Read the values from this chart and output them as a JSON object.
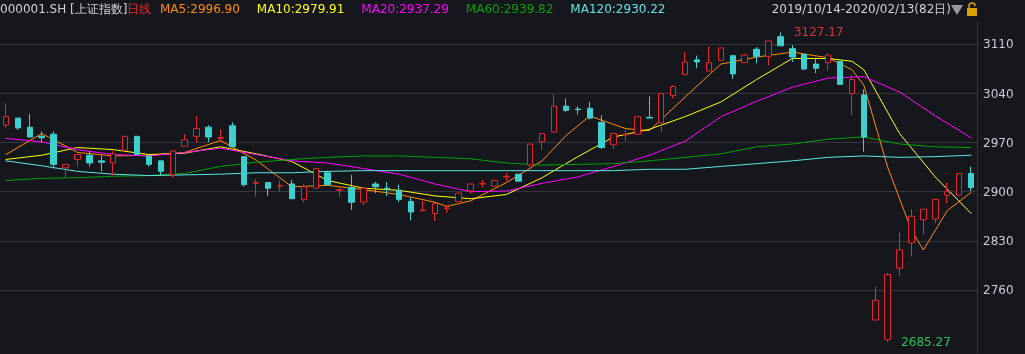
{
  "chart_data": {
    "type": "candlestick",
    "title": "000001.SH [上证指数]",
    "subtitle": "日线",
    "categories": [
      null,
      null,
      null,
      null,
      null,
      null,
      null,
      null,
      null,
      null,
      null,
      null,
      null,
      null,
      null,
      null,
      null,
      null,
      null,
      null,
      null,
      null,
      null,
      null,
      null,
      null,
      null,
      null,
      null,
      null,
      null,
      null,
      null,
      null,
      null,
      null,
      null,
      null,
      null,
      null,
      null,
      null,
      null,
      null,
      null,
      null,
      null,
      null,
      null,
      null,
      null,
      null,
      null,
      null,
      null,
      null,
      null,
      null,
      null,
      null,
      null,
      null,
      null,
      null,
      null,
      null,
      null,
      null,
      null,
      null,
      null,
      null,
      null,
      null,
      null,
      null,
      null,
      null,
      null,
      null,
      null,
      null
    ],
    "ohlc": [
      [
        2995,
        3026,
        2991,
        3007
      ],
      [
        3005,
        3005,
        2988,
        2991
      ],
      [
        2992,
        3011,
        2978,
        2978
      ],
      [
        2979,
        2986,
        2970,
        2977
      ],
      [
        2982,
        2986,
        2933,
        2939
      ],
      [
        2934,
        2939,
        2919,
        2939
      ],
      [
        2946,
        2953,
        2936,
        2953
      ],
      [
        2952,
        2958,
        2936,
        2941
      ],
      [
        2944,
        2952,
        2929,
        2942
      ],
      [
        2941,
        2958,
        2923,
        2954
      ],
      [
        2959,
        2979,
        2959,
        2979
      ],
      [
        2979,
        2979,
        2953,
        2953
      ],
      [
        2951,
        2951,
        2936,
        2939
      ],
      [
        2944,
        2944,
        2924,
        2929
      ],
      [
        2924,
        2958,
        2920,
        2958
      ],
      [
        2965,
        2982,
        2965,
        2974
      ],
      [
        2979,
        3008,
        2970,
        2990
      ],
      [
        2992,
        2995,
        2971,
        2978
      ],
      [
        2976,
        2989,
        2971,
        2977
      ],
      [
        2994,
        2999,
        2964,
        2964
      ],
      [
        2950,
        2950,
        2907,
        2910
      ],
      [
        2912,
        2918,
        2893,
        2913
      ],
      [
        2913,
        2913,
        2894,
        2905
      ],
      [
        2908,
        2916,
        2900,
        2909
      ],
      [
        2911,
        2917,
        2890,
        2890
      ],
      [
        2889,
        2911,
        2885,
        2907
      ],
      [
        2905,
        2933,
        2905,
        2933
      ],
      [
        2927,
        2930,
        2910,
        2910
      ],
      [
        2902,
        2908,
        2893,
        2903
      ],
      [
        2906,
        2924,
        2874,
        2885
      ],
      [
        2885,
        2905,
        2881,
        2905
      ],
      [
        2911,
        2914,
        2898,
        2907
      ],
      [
        2905,
        2914,
        2894,
        2904
      ],
      [
        2902,
        2910,
        2885,
        2889
      ],
      [
        2886,
        2892,
        2859,
        2871
      ],
      [
        2873,
        2887,
        2872,
        2874
      ],
      [
        2869,
        2883,
        2858,
        2883
      ],
      [
        2876,
        2881,
        2870,
        2877
      ],
      [
        2886,
        2898,
        2886,
        2898
      ],
      [
        2901,
        2911,
        2897,
        2911
      ],
      [
        2911,
        2917,
        2906,
        2912
      ],
      [
        2908,
        2917,
        2907,
        2916
      ],
      [
        2921,
        2927,
        2915,
        2922
      ],
      [
        2925,
        2925,
        2915,
        2915
      ],
      [
        2938,
        2968,
        2935,
        2968
      ],
      [
        2971,
        2983,
        2960,
        2983
      ],
      [
        2985,
        3039,
        2984,
        3022
      ],
      [
        3022,
        3033,
        3014,
        3016
      ],
      [
        3018,
        3022,
        3010,
        3017
      ],
      [
        3019,
        3028,
        3003,
        3005
      ],
      [
        2999,
        3009,
        2961,
        2963
      ],
      [
        2967,
        2983,
        2961,
        2983
      ],
      [
        2981,
        2989,
        2972,
        2982
      ],
      [
        2982,
        3007,
        2982,
        3007
      ],
      [
        3006,
        3036,
        3005,
        3005
      ],
      [
        2998,
        3040,
        2985,
        3040
      ],
      [
        3037,
        3052,
        3033,
        3050
      ],
      [
        3067,
        3099,
        3067,
        3085
      ],
      [
        3088,
        3094,
        3076,
        3085
      ],
      [
        3072,
        3107,
        3072,
        3084
      ],
      [
        3087,
        3105,
        3087,
        3105
      ],
      [
        3094,
        3094,
        3061,
        3068
      ],
      [
        3084,
        3097,
        3084,
        3095
      ],
      [
        3103,
        3106,
        3083,
        3093
      ],
      [
        3093,
        3115,
        3080,
        3115
      ],
      [
        3121,
        3127.17,
        3108,
        3108
      ],
      [
        3104,
        3109,
        3085,
        3092
      ],
      [
        3096,
        3096,
        3073,
        3075
      ],
      [
        3082,
        3091,
        3069,
        3076
      ],
      [
        3084,
        3097,
        3073,
        3095
      ],
      [
        3086,
        3086,
        3053,
        3053
      ],
      [
        3040,
        3067,
        3009,
        3060
      ],
      [
        3038,
        3046,
        2957,
        2978
      ],
      [
        2717,
        2765,
        2717,
        2745
      ],
      [
        2689,
        2784,
        2685.27,
        2782
      ],
      [
        2791,
        2842,
        2780,
        2817
      ],
      [
        2827,
        2875,
        2808,
        2865
      ],
      [
        2860,
        2875,
        2839,
        2875
      ],
      [
        2861,
        2890,
        2855,
        2889
      ],
      [
        2895,
        2913,
        2883,
        2900
      ],
      [
        2895,
        2926,
        2895,
        2926
      ],
      [
        2926,
        2936,
        2901,
        2906
      ]
    ],
    "colors": [
      "#e3262b",
      "#3ecfcf",
      "#3ecfcf",
      "#3ecfcf",
      "#3ecfcf",
      "#e3262b",
      "#e3262b",
      "#3ecfcf",
      "#3ecfcf",
      "#e3262b",
      "#e3262b",
      "#3ecfcf",
      "#3ecfcf",
      "#3ecfcf",
      "#e3262b",
      "#e3262b",
      "#e3262b",
      "#3ecfcf",
      "#e3262b",
      "#3ecfcf",
      "#3ecfcf",
      "#e3262b",
      "#3ecfcf",
      "#e3262b",
      "#3ecfcf",
      "#e3262b",
      "#e3262b",
      "#3ecfcf",
      "#e3262b",
      "#3ecfcf",
      "#e3262b",
      "#3ecfcf",
      "#3ecfcf",
      "#3ecfcf",
      "#3ecfcf",
      "#e3262b",
      "#e3262b",
      "#e3262b",
      "#e3262b",
      "#e3262b",
      "#e3262b",
      "#e3262b",
      "#e3262b",
      "#3ecfcf",
      "#e3262b",
      "#e3262b",
      "#e3262b",
      "#3ecfcf",
      "#3ecfcf",
      "#3ecfcf",
      "#3ecfcf",
      "#e3262b",
      "#e3262b",
      "#e3262b",
      "#3ecfcf",
      "#e3262b",
      "#e3262b",
      "#e3262b",
      "#3ecfcf",
      "#e3262b",
      "#e3262b",
      "#3ecfcf",
      "#e3262b",
      "#3ecfcf",
      "#e3262b",
      "#3ecfcf",
      "#3ecfcf",
      "#3ecfcf",
      "#3ecfcf",
      "#e3262b",
      "#3ecfcf",
      "#e3262b",
      "#3ecfcf",
      "#e3262b",
      "#e3262b",
      "#e3262b",
      "#e3262b",
      "#e3262b",
      "#e3262b",
      "#e3262b",
      "#e3262b",
      "#3ecfcf"
    ],
    "series": [
      {
        "type": "line",
        "name": "MA5:2996.90",
        "color": "#ff8c00",
        "values": [
          2953,
          null,
          null,
          2983,
          null,
          null,
          2956,
          null,
          null,
          2951,
          null,
          null,
          2952,
          null,
          null,
          2956,
          null,
          null,
          2973,
          null,
          null,
          2945,
          null,
          null,
          2907,
          null,
          null,
          2909,
          null,
          null,
          2903,
          null,
          null,
          2896,
          null,
          null,
          2885,
          2879,
          null,
          2887,
          null,
          null,
          2913,
          null,
          null,
          2944,
          null,
          2980,
          null,
          3008,
          null,
          null,
          2990,
          null,
          2987,
          null,
          null,
          3035,
          null,
          null,
          3082,
          null,
          null,
          3092,
          null,
          null,
          3099,
          null,
          null,
          3091,
          null,
          3074,
          3052,
          null,
          2935,
          null,
          2845,
          2817,
          null,
          2873,
          null,
          2899
        ]
      },
      {
        "type": "line",
        "name": "MA10:2979.91",
        "color": "#ffff00",
        "values": [
          2946,
          null,
          null,
          2952,
          null,
          null,
          2963,
          null,
          null,
          2960,
          null,
          null,
          2953,
          null,
          null,
          2955,
          null,
          null,
          2964,
          null,
          null,
          2954,
          null,
          null,
          2943,
          null,
          null,
          2916,
          null,
          null,
          2905,
          null,
          null,
          2902,
          null,
          null,
          2894,
          null,
          null,
          2890,
          null,
          null,
          2896,
          null,
          null,
          2920,
          null,
          null,
          2950,
          null,
          null,
          2978,
          null,
          null,
          2989,
          null,
          null,
          3007,
          null,
          null,
          3028,
          null,
          null,
          3060,
          null,
          null,
          3090,
          null,
          null,
          3090,
          null,
          3086,
          3074,
          null,
          null,
          2983,
          null,
          null,
          2921,
          null,
          null,
          2869
        ]
      },
      {
        "type": "line",
        "name": "MA20:2937.29",
        "color": "#ff00ff",
        "values": [
          2976,
          null,
          null,
          2971,
          null,
          null,
          2960,
          null,
          null,
          2953,
          null,
          null,
          2951,
          null,
          null,
          2956,
          null,
          null,
          2962,
          null,
          null,
          2953,
          null,
          null,
          2944,
          null,
          null,
          2941,
          null,
          null,
          2933,
          null,
          null,
          2925,
          null,
          null,
          2911,
          null,
          null,
          2900,
          null,
          null,
          2901,
          null,
          null,
          2912,
          null,
          null,
          2921,
          null,
          null,
          2936,
          null,
          null,
          2952,
          null,
          null,
          2972,
          null,
          null,
          3007,
          null,
          null,
          3029,
          null,
          null,
          3049,
          null,
          null,
          3062,
          null,
          null,
          3064,
          null,
          null,
          3042,
          null,
          null,
          3008,
          null,
          null,
          2977
        ]
      },
      {
        "type": "line",
        "name": "MA60:2939.82",
        "color": "#00a000",
        "values": [
          2916,
          null,
          null,
          2919,
          null,
          null,
          2920,
          null,
          null,
          2922,
          null,
          null,
          2923,
          null,
          null,
          2926,
          null,
          null,
          2936,
          null,
          null,
          2942,
          null,
          null,
          2946,
          null,
          null,
          2949,
          null,
          null,
          2951,
          null,
          null,
          2951,
          null,
          null,
          2949,
          null,
          null,
          2947,
          null,
          null,
          2941,
          null,
          null,
          2938,
          null,
          null,
          2939,
          null,
          null,
          2940,
          null,
          null,
          2944,
          null,
          null,
          2949,
          null,
          null,
          2954,
          null,
          null,
          2964,
          null,
          null,
          2968,
          null,
          null,
          2975,
          null,
          null,
          2978,
          null,
          null,
          2968,
          null,
          null,
          2964,
          null,
          null,
          2963
        ]
      },
      {
        "type": "line",
        "name": "MA120:2930.22",
        "color": "#5ee6e6",
        "values": [
          2944,
          null,
          null,
          2937,
          null,
          null,
          2929,
          null,
          null,
          2925,
          null,
          null,
          2923,
          null,
          null,
          2924,
          null,
          null,
          2925,
          null,
          null,
          2927,
          null,
          null,
          2927,
          null,
          null,
          2929,
          null,
          null,
          2930,
          null,
          null,
          2930,
          null,
          null,
          2930,
          null,
          null,
          2930,
          null,
          null,
          2930,
          null,
          null,
          2930,
          null,
          null,
          2930,
          null,
          null,
          2930,
          null,
          null,
          2932,
          null,
          null,
          2932,
          null,
          null,
          2936,
          null,
          null,
          2940,
          null,
          null,
          2944,
          null,
          null,
          2949,
          null,
          null,
          2951,
          null,
          null,
          2949,
          null,
          null,
          2950,
          null,
          null,
          2952
        ]
      }
    ],
    "ylim": [
      2670,
      3142
    ],
    "yticks": [
      2760,
      2830,
      2900,
      2970,
      3040,
      3110
    ],
    "grid": "y",
    "legend": "top left",
    "marker": "none",
    "line_style": "solid",
    "annotations": [
      "2019/10/14-2020/02/13(82日)",
      "3127.17",
      "2685.27"
    ]
  }
}
